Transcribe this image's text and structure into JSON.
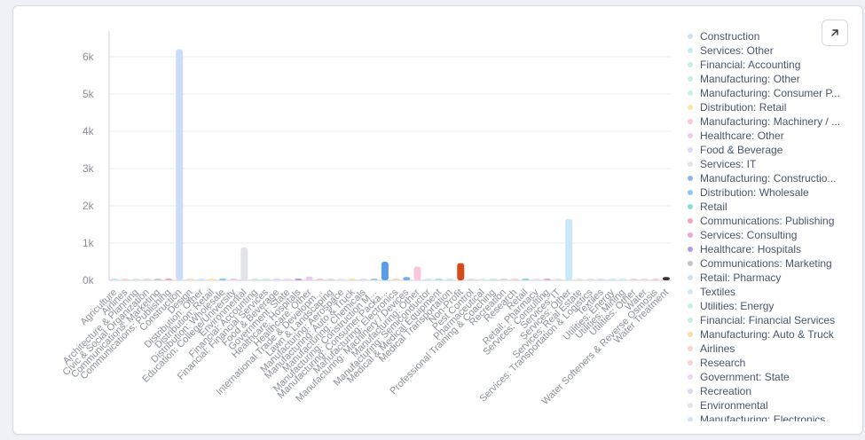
{
  "chart_data": {
    "type": "bar",
    "title": "",
    "xlabel": "",
    "ylabel": "",
    "ylim": [
      0,
      6500
    ],
    "y_ticks": [
      0,
      1000,
      2000,
      3000,
      4000,
      5000,
      6000
    ],
    "y_tick_labels": [
      "0k",
      "1k",
      "2k",
      "3k",
      "4k",
      "5k",
      "6k"
    ],
    "grid": true,
    "legend_position": "right",
    "categories": [
      "Agriculture",
      "Airlines",
      "Architecture & Planning",
      "Civic & Social Organization",
      "Communications: Marketing",
      "Communications: Publishing",
      "Construction",
      "Design",
      "Distribution: Other",
      "Distribution: Retail",
      "Distribution: Wholesale",
      "Education: College/University",
      "Environmental",
      "Financial: Accounting",
      "Financial: Financial Services",
      "Food & Beverage",
      "Government: State",
      "Healthcare: Hospitals",
      "Healthcare: Other",
      "International Trade & Development",
      "Lawn & Landscaping",
      "Manufacturing: Aerospace",
      "Manufacturing: Auto & Truck",
      "Manufacturing: Chemicals",
      "Manufacturing: Construction",
      "Manufacturing: Consumer Packaging",
      "Manufacturing: Electronics",
      "Manufacturing: Machinery / Devices",
      "Manufacturing: Other",
      "Manufacturing: Semiconductor",
      "Medical & Medical Equipment",
      "Medical Transportation",
      "Non-Profit",
      "Pest Control",
      "Pharmaceutical",
      "Professional Training & Coaching",
      "Recreation",
      "Research",
      "Retail",
      "Retail: Pharmacy",
      "Services: Consulting",
      "Services: IT",
      "Services: Other",
      "Services: Real Estate",
      "Services: Transportation & Logistics",
      "Textiles",
      "Utilities: Energy",
      "Utilities: Mining",
      "Utilities: Other",
      "Water",
      "Water Softeners & Reverse Osmosis",
      "Water Treatment"
    ],
    "x_tick_labels": [
      "Agriculture",
      "Airlines",
      "Architecture & Planning",
      "Civic & Social Organization",
      "Communications: Marketing",
      "Communications: Publishing",
      "Construction",
      "Design",
      "Distribution: Other",
      "Distribution: Retail",
      "Distribution: Wholesale",
      "Education: College/University",
      "Environmental",
      "Financial: Accounting",
      "Financial: Financial Services",
      "Food & Beverage",
      "Government: State",
      "Healthcare: Hospitals",
      "Healthcare: Other",
      "International Trade & Developm...",
      "Lawn & Landscaping",
      "Manufacturing: Aerospace",
      "Manufacturing: Auto & Truck",
      "Manufacturing: Chemicals",
      "Manufacturing: Construction M...",
      "Manufacturing: Consumer Packa...",
      "Manufacturing: Electronics",
      "Manufacturing: Machinery / Devices",
      "Manufacturing: Other",
      "Manufacturing: Semiconductor",
      "Medical & Medical Equipment",
      "Medical Transportation",
      "Non-Profit",
      "Pest Control",
      "Pharmaceutical",
      "Professional Training & Coaching",
      "Recreation",
      "Research",
      "Retail",
      "Retail: Pharmacy",
      "Services: Consulting",
      "Services: IT",
      "Services: Other",
      "Services: Real Estate",
      "Services: Transportation & Logistics",
      "Textiles",
      "Utilities: Energy",
      "Utilities: Mining",
      "Utilities: Other",
      "Water",
      "Water Softeners & Reverse Osmosis",
      "Water Treatment"
    ],
    "values": [
      5,
      5,
      10,
      5,
      5,
      15,
      6200,
      10,
      5,
      30,
      50,
      10,
      880,
      10,
      10,
      5,
      5,
      10,
      100,
      10,
      10,
      10,
      10,
      10,
      30,
      500,
      5,
      90,
      370,
      40,
      30,
      30,
      460,
      10,
      10,
      30,
      10,
      5,
      10,
      10,
      10,
      5,
      1650,
      10,
      10,
      5,
      10,
      40,
      5,
      5,
      5,
      90
    ],
    "colors": [
      "#cfe3f7",
      "#f7d7c8",
      "#d6e6fa",
      "#e2d6f7",
      "#c9c9d4",
      "#f2a8b8",
      "#cbdcf8",
      "#f7dfc8",
      "#cfe8f7",
      "#f9e6a8",
      "#8fc7ee",
      "#f3c9e3",
      "#e2e4ea",
      "#c5efe3",
      "#c8efdd",
      "#e0d6f7",
      "#f3d3ef",
      "#b09ae8",
      "#efc9ef",
      "#f2c9c9",
      "#d9d9e0",
      "#e8e8ee",
      "#f9e0a8",
      "#e4d9f3",
      "#a9c5f0",
      "#5b9ee8",
      "#f7d3c8",
      "#7aaee8",
      "#f9c6dc",
      "#d9e6f7",
      "#a8e6d9",
      "#c8e6f0",
      "#d94a1a",
      "#e0e0e6",
      "#d8f0d8",
      "#cfe8df",
      "#d9d9f0",
      "#f7d3d3",
      "#8fd9d9",
      "#e6e6f0",
      "#e8b0d8",
      "#e6e6e8",
      "#c9e9fb",
      "#f4e4d8",
      "#e6e2f0",
      "#d6e0f7",
      "#c8f0ea",
      "#d0eef7",
      "#f7d0d0",
      "#f7d6e6",
      "#f7c9e0",
      "#333333"
    ],
    "series": [
      {
        "values": [
          5,
          5,
          10,
          5,
          5,
          15,
          6200,
          10,
          5,
          30,
          50,
          10,
          880,
          10,
          10,
          5,
          5,
          10,
          100,
          10,
          10,
          10,
          10,
          10,
          30,
          500,
          5,
          90,
          370,
          40,
          30,
          30,
          460,
          10,
          10,
          30,
          10,
          5,
          10,
          10,
          10,
          5,
          1650,
          10,
          10,
          5,
          10,
          40,
          5,
          5,
          5,
          90
        ]
      }
    ]
  },
  "legend": {
    "items": [
      {
        "label": "Construction",
        "color": "#cfe3f7"
      },
      {
        "label": "Services: Other",
        "color": "#c9e9fb"
      },
      {
        "label": "Financial: Accounting",
        "color": "#c5efe3"
      },
      {
        "label": "Manufacturing: Other",
        "color": "#c8efdd"
      },
      {
        "label": "Manufacturing: Consumer P...",
        "color": "#c8f0ea"
      },
      {
        "label": "Distribution: Retail",
        "color": "#f9e6a8"
      },
      {
        "label": "Manufacturing: Machinery / ...",
        "color": "#f9c6dc"
      },
      {
        "label": "Healthcare: Other",
        "color": "#efc9ef"
      },
      {
        "label": "Food & Beverage",
        "color": "#e0d6f7"
      },
      {
        "label": "Services: IT",
        "color": "#e2e4ea"
      },
      {
        "label": "Manufacturing: Constructio...",
        "color": "#8fb5ee"
      },
      {
        "label": "Distribution: Wholesale",
        "color": "#8fc7ee"
      },
      {
        "label": "Retail",
        "color": "#8fd9d9"
      },
      {
        "label": "Communications: Publishing",
        "color": "#f2a8b8"
      },
      {
        "label": "Services: Consulting",
        "color": "#e8a8d8"
      },
      {
        "label": "Healthcare: Hospitals",
        "color": "#b09ae8"
      },
      {
        "label": "Communications: Marketing",
        "color": "#c4c4cc"
      },
      {
        "label": "Retail: Pharmacy",
        "color": "#cfe3f7"
      },
      {
        "label": "Textiles",
        "color": "#d6e6fa"
      },
      {
        "label": "Utilities: Energy",
        "color": "#c8f0ea"
      },
      {
        "label": "Financial: Financial Services",
        "color": "#c8efdd"
      },
      {
        "label": "Manufacturing: Auto & Truck",
        "color": "#f9e0a8"
      },
      {
        "label": "Airlines",
        "color": "#f7d7c8"
      },
      {
        "label": "Research",
        "color": "#f7d3d3"
      },
      {
        "label": "Government: State",
        "color": "#f3d3ef"
      },
      {
        "label": "Recreation",
        "color": "#d9d9f0"
      },
      {
        "label": "Environmental",
        "color": "#e2e4ea"
      },
      {
        "label": "Manufacturing: Electronics",
        "color": "#d6e0f7"
      }
    ]
  },
  "icons": {
    "expand": "expand-arrow-icon"
  }
}
